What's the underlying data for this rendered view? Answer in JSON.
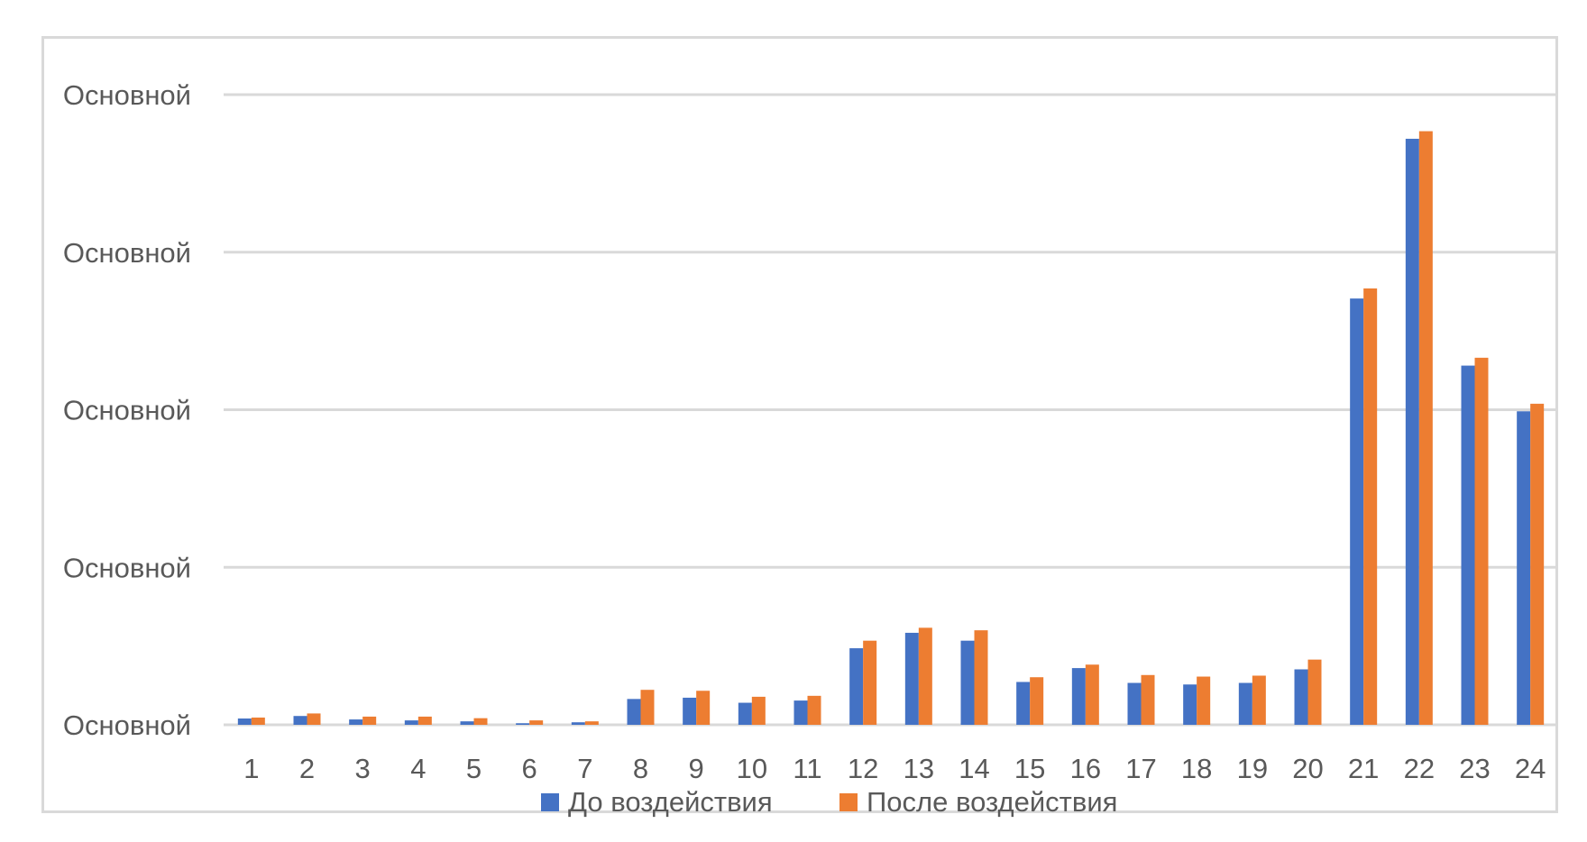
{
  "chart_data": {
    "type": "bar",
    "title": "",
    "xlabel": "",
    "ylabel": "",
    "categories": [
      "1",
      "2",
      "3",
      "4",
      "5",
      "6",
      "7",
      "8",
      "9",
      "10",
      "11",
      "12",
      "13",
      "14",
      "15",
      "16",
      "17",
      "18",
      "19",
      "20",
      "21",
      "22",
      "23",
      "24"
    ],
    "y_tick_labels": [
      "Основной",
      "Основной",
      "Основной",
      "Основной",
      "Основной"
    ],
    "ylim": [
      0,
      200
    ],
    "y_ticks": [
      0,
      50,
      100,
      150,
      200
    ],
    "grid": true,
    "legend_position": "bottom",
    "series": [
      {
        "name": "До воздействия",
        "color": "#4472C4",
        "values": [
          2.0,
          2.8,
          1.7,
          1.4,
          1.1,
          0.5,
          0.8,
          8.2,
          8.6,
          7.0,
          7.7,
          24.3,
          29.2,
          26.7,
          13.6,
          18.0,
          13.3,
          12.8,
          13.3,
          17.6,
          135.3,
          186.0,
          114.0,
          99.5
        ],
        "values_note": ""
      },
      {
        "name": "После воздействия",
        "color": "#ED7D31",
        "values": [
          2.3,
          3.6,
          2.6,
          2.6,
          2.1,
          1.4,
          1.1,
          11.1,
          10.8,
          8.9,
          9.2,
          26.7,
          30.8,
          30.0,
          15.1,
          19.1,
          15.8,
          15.3,
          15.6,
          20.7,
          138.5,
          188.4,
          116.5,
          101.9
        ]
      }
    ]
  }
}
